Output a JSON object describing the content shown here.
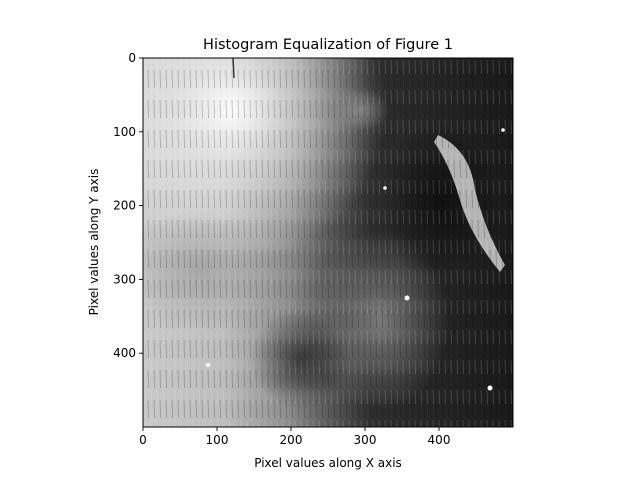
{
  "chart_data": {
    "type": "heatmap",
    "colormap": "gray",
    "title": "Histogram Equalization of Figure 1",
    "xlabel": "Pixel values along X axis",
    "ylabel": "Pixel values along Y axis",
    "xlim": [
      0,
      500
    ],
    "ylim": [
      500,
      0
    ],
    "x_ticks": [
      0,
      100,
      200,
      300,
      400
    ],
    "y_ticks": [
      0,
      100,
      200,
      300,
      400
    ],
    "grid": false,
    "legend": "none"
  }
}
